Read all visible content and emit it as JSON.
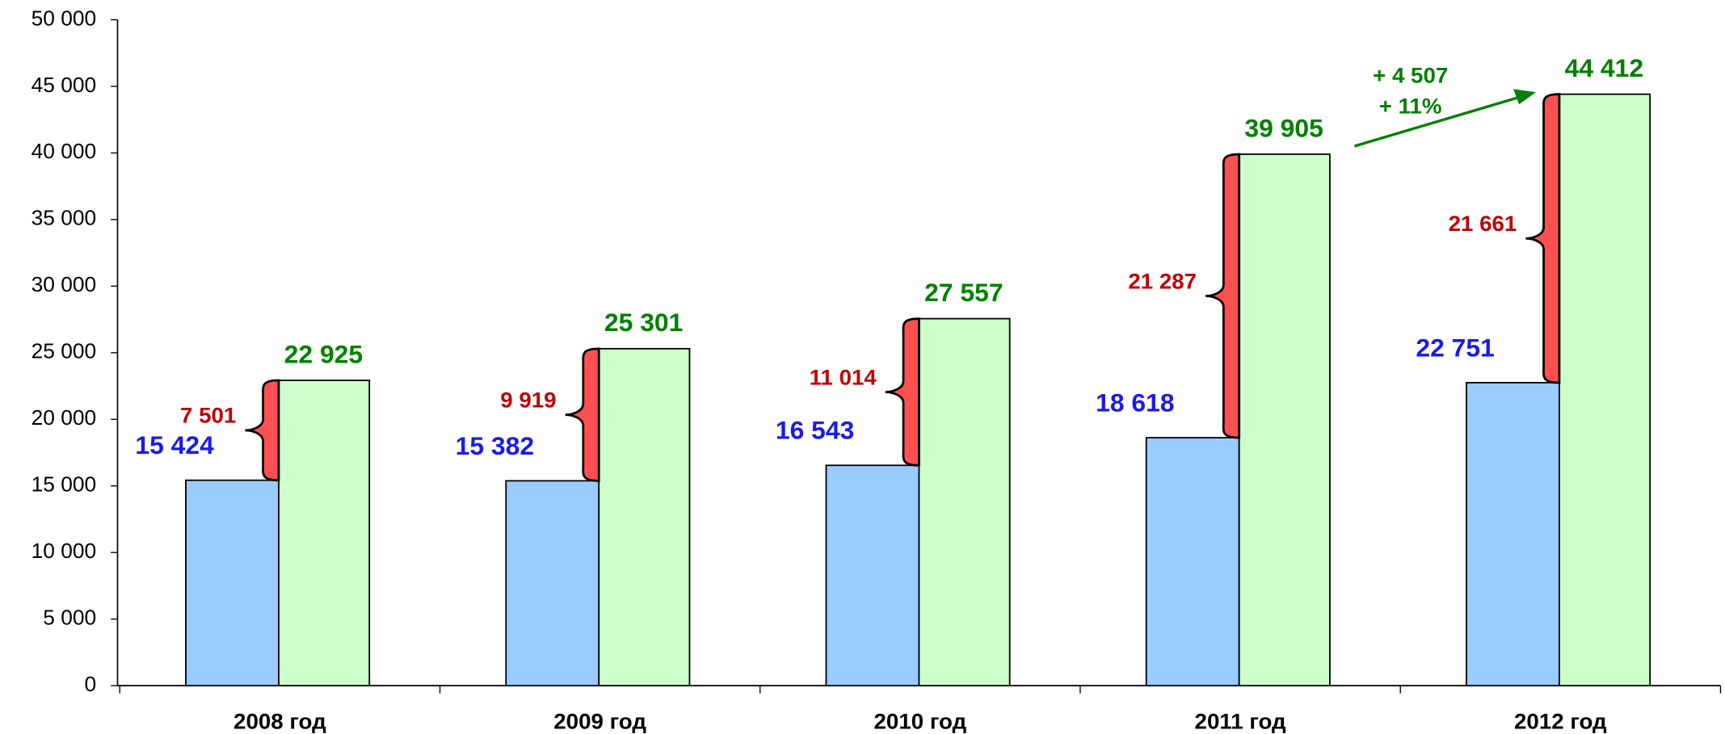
{
  "chart_data": {
    "type": "bar",
    "categories": [
      "2008 год",
      "2009 год",
      "2010 год",
      "2011 год",
      "2012 год"
    ],
    "series": [
      {
        "color": "#99ccff",
        "label_color": "#1a1aee",
        "values": [
          15424,
          15382,
          16543,
          18618,
          22751
        ],
        "value_labels": [
          "15 424",
          "15 382",
          "16 543",
          "18 618",
          "22 751"
        ]
      },
      {
        "color": "#ccffcc",
        "label_color": "#008000",
        "values": [
          22925,
          25301,
          27557,
          39905,
          44412
        ],
        "value_labels": [
          "22 925",
          "25 301",
          "27 557",
          "39 905",
          "44 412"
        ]
      }
    ],
    "differences": {
      "color": "#ff5050",
      "label_color": "#c00000",
      "values": [
        7501,
        9919,
        11014,
        21287,
        21661
      ],
      "value_labels": [
        "7 501",
        "9 919",
        "11 014",
        "21 287",
        "21 661"
      ]
    },
    "annotations": [
      "+ 4 507",
      "+ 11%"
    ],
    "annotation_color": "#008000",
    "ylim": [
      0,
      50000
    ],
    "yticks": [
      0,
      {
        "value": 5000,
        "label": "5 000"
      },
      {
        "value": 10000,
        "label": "10 000"
      },
      {
        "value": 15000,
        "label": "15 000"
      },
      {
        "value": 20000,
        "label": "20 000"
      },
      {
        "value": 25000,
        "label": "25 000"
      },
      {
        "value": 30000,
        "label": "30 000"
      },
      {
        "value": 35000,
        "label": "35 000"
      },
      {
        "value": 40000,
        "label": "40 000"
      },
      {
        "value": 45000,
        "label": "45 000"
      },
      {
        "value": 50000,
        "label": "50 000"
      }
    ]
  }
}
